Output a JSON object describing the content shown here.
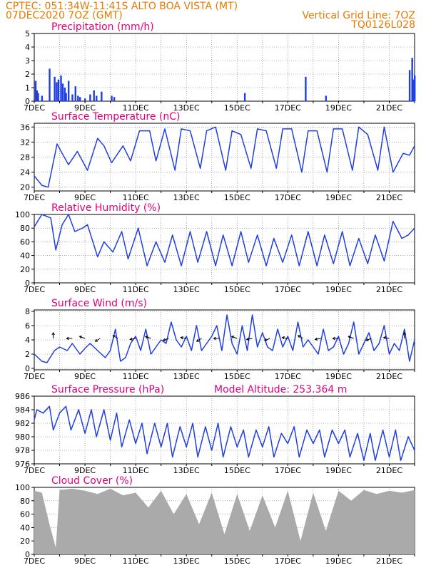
{
  "header": {
    "line1_left": "CPTEC:   051:34W-11:41S   ALTO BOA VISTA (MT)",
    "line2_left": "07DEC2020 7OZ (GMT)",
    "line2_right": "Vertical Grid Line: 7OZ",
    "line3_right": "TQ0126L028",
    "model_altitude": "Model Altitude: 253.364 m"
  },
  "colors": {
    "header": "#e57a00",
    "title": "#e0007a",
    "line": "#1f3fe0",
    "bar": "#1f3fe0",
    "cloud": "#aaaaaa",
    "arrow": "#000000"
  },
  "x_ticks": [
    "7DEC",
    "9DEC",
    "11DEC",
    "13DEC",
    "15DEC",
    "17DEC",
    "19DEC",
    "21DEC"
  ],
  "x_range_days": [
    0,
    15
  ],
  "chart_data": [
    {
      "type": "bar",
      "title": "Precipitation (mm/h)",
      "ylim": [
        0,
        5
      ],
      "yticks": [
        0,
        1,
        2,
        3,
        4,
        5
      ],
      "x": [
        0.05,
        0.1,
        0.15,
        0.3,
        0.6,
        0.8,
        0.88,
        0.95,
        1.05,
        1.12,
        1.2,
        1.25,
        1.35,
        1.5,
        1.62,
        1.72,
        1.8,
        2.0,
        2.2,
        2.35,
        2.45,
        2.65,
        3.05,
        3.15,
        8.3,
        10.7,
        11.5,
        14.8,
        14.9,
        14.95,
        15.0
      ],
      "values": [
        1.5,
        0.8,
        0.6,
        0.4,
        2.4,
        1.8,
        1.4,
        1.6,
        1.9,
        1.3,
        1.0,
        0.6,
        1.5,
        0.5,
        1.1,
        0.4,
        0.3,
        0.2,
        0.5,
        0.8,
        0.4,
        0.7,
        0.4,
        0.3,
        0.6,
        1.8,
        0.4,
        2.3,
        3.2,
        1.6,
        1.9
      ]
    },
    {
      "type": "line",
      "title": "Surface Temperature (nC)",
      "ylim": [
        19,
        37
      ],
      "yticks": [
        20,
        24,
        28,
        32,
        36
      ],
      "x": [
        0,
        0.3,
        0.55,
        0.9,
        1.1,
        1.35,
        1.7,
        2.1,
        2.5,
        2.75,
        3.05,
        3.5,
        3.8,
        4.15,
        4.55,
        4.8,
        5.15,
        5.55,
        5.8,
        6.15,
        6.55,
        6.8,
        7.15,
        7.55,
        7.8,
        8.15,
        8.55,
        8.8,
        9.15,
        9.55,
        9.8,
        10.15,
        10.55,
        10.8,
        11.15,
        11.55,
        11.8,
        12.15,
        12.55,
        12.8,
        13.15,
        13.55,
        13.8,
        14.15,
        14.55,
        14.8,
        15.0
      ],
      "values": [
        23,
        20.5,
        20,
        31.5,
        29,
        26,
        29.5,
        24.5,
        33,
        31,
        26.5,
        31,
        27,
        35,
        35,
        27,
        35.5,
        24.5,
        35.5,
        35,
        25,
        35,
        36,
        24.5,
        35,
        34,
        25,
        35.5,
        35,
        25,
        35.5,
        35.5,
        24,
        35,
        35,
        24,
        35.5,
        35.5,
        24.5,
        36,
        34,
        24.5,
        36,
        24,
        29,
        28.5,
        31
      ]
    },
    {
      "type": "line",
      "title": "Relative Humidity (%)",
      "ylim": [
        0,
        100
      ],
      "yticks": [
        0,
        20,
        40,
        60,
        80,
        100
      ],
      "x": [
        0,
        0.3,
        0.65,
        0.85,
        1.1,
        1.35,
        1.6,
        1.9,
        2.1,
        2.5,
        2.75,
        3.1,
        3.45,
        3.7,
        4.1,
        4.45,
        4.8,
        5.15,
        5.45,
        5.8,
        6.15,
        6.45,
        6.8,
        7.15,
        7.45,
        7.8,
        8.15,
        8.45,
        8.8,
        9.15,
        9.45,
        9.8,
        10.15,
        10.45,
        10.8,
        11.15,
        11.45,
        11.8,
        12.15,
        12.45,
        12.8,
        13.15,
        13.45,
        13.8,
        14.15,
        14.5,
        14.75,
        15.0
      ],
      "values": [
        82,
        100,
        95,
        48,
        85,
        100,
        75,
        80,
        85,
        38,
        60,
        45,
        75,
        35,
        80,
        25,
        60,
        30,
        70,
        25,
        75,
        30,
        75,
        25,
        70,
        25,
        75,
        30,
        70,
        25,
        65,
        30,
        70,
        25,
        75,
        25,
        70,
        28,
        75,
        25,
        65,
        28,
        70,
        32,
        90,
        65,
        70,
        80
      ]
    },
    {
      "type": "line",
      "title": "Surface Wind (m/s)",
      "ylim": [
        -0.2,
        8.2
      ],
      "yticks": [
        0,
        2,
        4,
        6,
        8
      ],
      "x": [
        0,
        0.3,
        0.5,
        0.8,
        1.0,
        1.3,
        1.5,
        1.8,
        2.0,
        2.2,
        2.5,
        2.8,
        3.0,
        3.2,
        3.4,
        3.6,
        3.8,
        4.0,
        4.2,
        4.4,
        4.6,
        4.8,
        5.0,
        5.2,
        5.4,
        5.6,
        5.8,
        6.0,
        6.2,
        6.4,
        6.6,
        6.8,
        7.0,
        7.2,
        7.4,
        7.6,
        7.8,
        8.0,
        8.2,
        8.4,
        8.6,
        8.8,
        9.0,
        9.2,
        9.4,
        9.6,
        9.8,
        10.0,
        10.2,
        10.4,
        10.6,
        10.8,
        11.0,
        11.2,
        11.4,
        11.6,
        11.8,
        12.0,
        12.2,
        12.4,
        12.6,
        12.8,
        13.0,
        13.2,
        13.4,
        13.6,
        13.8,
        14.0,
        14.2,
        14.4,
        14.6,
        14.8,
        15.0
      ],
      "values": [
        2.0,
        1.0,
        0.8,
        2.5,
        3.0,
        2.5,
        3.5,
        2.0,
        2.8,
        3.5,
        2.5,
        1.5,
        2.5,
        5.5,
        1.0,
        1.5,
        3.5,
        4.5,
        2.5,
        5.5,
        2.0,
        3.0,
        4.0,
        3.5,
        6.5,
        4.0,
        3.0,
        4.5,
        2.5,
        6.0,
        2.5,
        3.5,
        4.5,
        6.0,
        2.5,
        7.5,
        3.5,
        2.0,
        6.0,
        2.5,
        7.5,
        3.0,
        5.0,
        3.0,
        2.5,
        5.5,
        3.0,
        4.5,
        2.5,
        6.5,
        3.0,
        4.0,
        3.0,
        2.0,
        5.5,
        2.5,
        3.0,
        4.5,
        2.0,
        3.5,
        6.5,
        2.0,
        3.5,
        5.0,
        2.5,
        3.5,
        6.0,
        2.0,
        3.5,
        2.5,
        5.5,
        1.0,
        4.0
      ]
    },
    {
      "type": "line",
      "title": "Surface Pressure (hPa)",
      "ylim": [
        976,
        986
      ],
      "yticks": [
        976,
        978,
        980,
        982,
        984,
        986
      ],
      "x": [
        0,
        0.1,
        0.35,
        0.6,
        0.75,
        1.0,
        1.25,
        1.45,
        1.75,
        2.0,
        2.25,
        2.45,
        2.75,
        3.0,
        3.25,
        3.45,
        3.75,
        4.0,
        4.25,
        4.45,
        4.75,
        5.0,
        5.25,
        5.45,
        5.75,
        6.0,
        6.25,
        6.45,
        6.75,
        7.0,
        7.25,
        7.45,
        7.75,
        8.0,
        8.25,
        8.45,
        8.75,
        9.0,
        9.25,
        9.45,
        9.75,
        10.0,
        10.25,
        10.45,
        10.75,
        11.0,
        11.25,
        11.45,
        11.75,
        12.0,
        12.25,
        12.45,
        12.75,
        13.0,
        13.25,
        13.45,
        13.75,
        14.0,
        14.25,
        14.45,
        14.75,
        15.0
      ],
      "values": [
        982.5,
        984,
        983.5,
        984.5,
        981,
        983.5,
        984.5,
        981,
        984,
        980.5,
        984,
        980,
        984,
        979.5,
        983.5,
        978.5,
        982.5,
        979,
        982,
        977.5,
        982,
        978.5,
        982,
        977,
        981.5,
        978.5,
        982,
        977,
        981.5,
        978,
        982,
        977,
        981.5,
        978.5,
        981,
        977,
        981,
        978.5,
        981.5,
        977,
        980.5,
        979,
        981.5,
        977,
        981,
        979,
        981,
        977,
        981,
        979,
        981,
        977,
        980.5,
        976.5,
        980.5,
        976.5,
        981,
        977,
        981,
        976.5,
        980,
        978
      ]
    },
    {
      "type": "area",
      "title": "Cloud Cover (%)",
      "ylim": [
        0,
        100
      ],
      "yticks": [
        0,
        20,
        40,
        60,
        80,
        100
      ],
      "x": [
        0,
        0.3,
        0.6,
        0.85,
        1.0,
        1.5,
        2.0,
        2.5,
        3.0,
        3.5,
        4.0,
        4.5,
        5.0,
        5.5,
        6.0,
        6.5,
        7.0,
        7.5,
        8.0,
        8.5,
        9.0,
        9.5,
        10.0,
        10.5,
        11.0,
        11.5,
        12.0,
        12.5,
        13.0,
        13.5,
        14.0,
        14.5,
        15.0
      ],
      "values": [
        95,
        92,
        45,
        10,
        96,
        98,
        95,
        90,
        98,
        88,
        92,
        70,
        95,
        60,
        90,
        45,
        92,
        30,
        90,
        35,
        88,
        40,
        95,
        20,
        92,
        35,
        95,
        80,
        96,
        90,
        95,
        92,
        96
      ]
    }
  ]
}
